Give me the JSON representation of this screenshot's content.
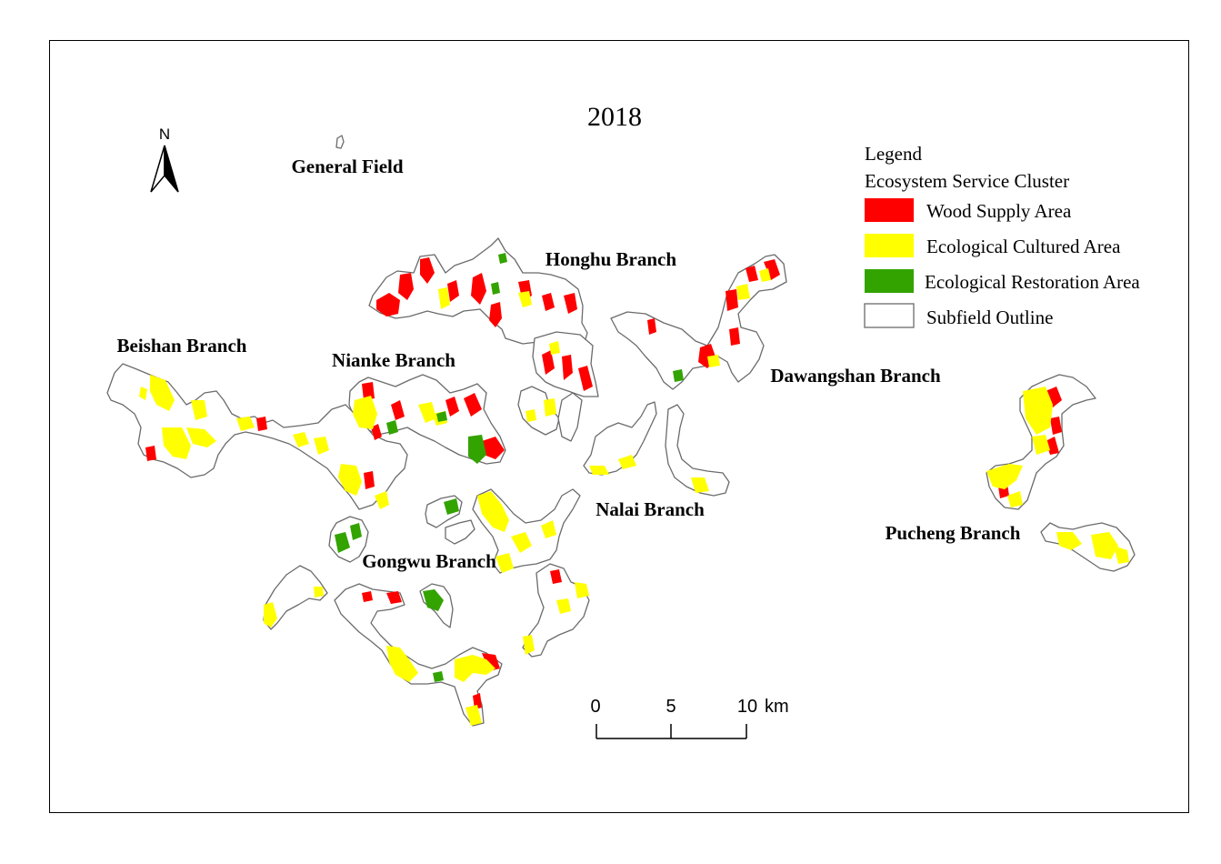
{
  "title": "2018",
  "north_arrow": {
    "label": "N"
  },
  "legend": {
    "heading": "Legend",
    "subheading": "Ecosystem Service Cluster",
    "items": [
      {
        "label": "Wood Supply Area",
        "color": "#ff0000"
      },
      {
        "label": "Ecological Cultured Area",
        "color": "#ffff00"
      },
      {
        "label": "Ecological Restoration Area",
        "color": "#33a300"
      },
      {
        "label": "Subfield Outline",
        "color": "#ffffff",
        "stroke": "#6b6b6b"
      }
    ]
  },
  "branches": [
    {
      "label": "General Field"
    },
    {
      "label": "Honghu Branch"
    },
    {
      "label": "Beishan Branch"
    },
    {
      "label": "Nianke Branch"
    },
    {
      "label": "Dawangshan Branch"
    },
    {
      "label": "Nalai Branch"
    },
    {
      "label": "Gongwu Branch"
    },
    {
      "label": "Pucheng Branch"
    }
  ],
  "scale_bar": {
    "ticks": [
      "0",
      "5",
      "10"
    ],
    "unit": "km"
  },
  "colors": {
    "wood": "#ff0000",
    "cultured": "#ffff00",
    "restoration": "#33a300",
    "outline": "#6b6b6b"
  }
}
